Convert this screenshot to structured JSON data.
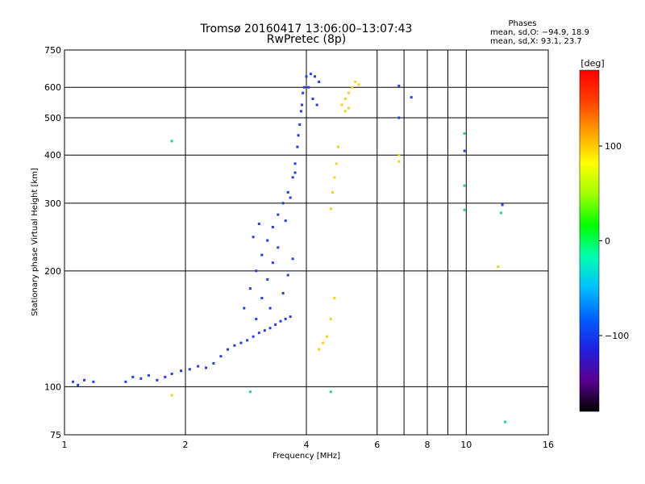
{
  "header": {
    "title_line1": "Tromsø 20160417 13:06:00–13:07:43",
    "title_line2": "RwPretec (8p)"
  },
  "stats": {
    "heading": "Phases",
    "line1": "mean, sd,O: −94.9, 18.9",
    "line2": "mean, sd,X:  93.1, 23.7"
  },
  "colorbar": {
    "unit_label": "[deg]",
    "range": [
      -180,
      180
    ],
    "tick_labels": [
      "100",
      "0",
      "−100"
    ],
    "tick_values": [
      100,
      0,
      -100
    ],
    "stops": [
      "#000000",
      "#5a0090",
      "#2020e0",
      "#0060ff",
      "#00c0ff",
      "#00ffb0",
      "#00ff00",
      "#a0ff00",
      "#ffff00",
      "#ffa000",
      "#ff4000",
      "#ff0000"
    ]
  },
  "chart_data": {
    "type": "scatter",
    "xlabel": "Frequency [MHz]",
    "ylabel": "Stationary phase Virtual Height [km]",
    "x_scale": "log",
    "y_scale": "log",
    "xlim": [
      1,
      16
    ],
    "ylim": [
      75,
      750
    ],
    "grid": true,
    "x_ticks": [
      {
        "value": 1,
        "label": "1",
        "grid": false
      },
      {
        "value": 2,
        "label": "2",
        "grid": true
      },
      {
        "value": 4,
        "label": "4",
        "grid": true
      },
      {
        "value": 6,
        "label": "6",
        "grid": true
      },
      {
        "value": 8,
        "label": "8",
        "grid": true
      },
      {
        "value": 10,
        "label": "10",
        "grid": true
      },
      {
        "value": 16,
        "label": "16",
        "grid": false
      }
    ],
    "x_minor_grid": [
      7,
      9
    ],
    "y_ticks": [
      {
        "value": 75,
        "label": "75"
      },
      {
        "value": 100,
        "label": "100"
      },
      {
        "value": 200,
        "label": "200"
      },
      {
        "value": 300,
        "label": "300"
      },
      {
        "value": 400,
        "label": "400"
      },
      {
        "value": 500,
        "label": "500"
      },
      {
        "value": 600,
        "label": "600"
      },
      {
        "value": 750,
        "label": "750"
      }
    ],
    "series": [
      {
        "mode": "O",
        "color": "#2a3ce0",
        "points": [
          [
            1.05,
            103
          ],
          [
            1.08,
            101
          ],
          [
            1.12,
            104
          ],
          [
            1.18,
            103
          ],
          [
            1.42,
            103
          ],
          [
            1.48,
            106
          ],
          [
            1.55,
            105
          ],
          [
            1.62,
            107
          ],
          [
            1.7,
            104
          ],
          [
            1.78,
            106
          ],
          [
            1.85,
            108
          ],
          [
            1.95,
            110
          ],
          [
            2.05,
            111
          ],
          [
            2.15,
            113
          ],
          [
            2.25,
            112
          ],
          [
            2.35,
            115
          ],
          [
            2.45,
            120
          ],
          [
            2.55,
            125
          ],
          [
            2.65,
            128
          ],
          [
            2.75,
            130
          ],
          [
            2.85,
            132
          ],
          [
            2.95,
            135
          ],
          [
            3.05,
            138
          ],
          [
            3.15,
            140
          ],
          [
            3.25,
            142
          ],
          [
            3.35,
            145
          ],
          [
            3.45,
            148
          ],
          [
            3.55,
            150
          ],
          [
            3.65,
            152
          ],
          [
            2.8,
            160
          ],
          [
            2.9,
            180
          ],
          [
            3.0,
            200
          ],
          [
            3.1,
            220
          ],
          [
            3.2,
            240
          ],
          [
            3.3,
            260
          ],
          [
            3.4,
            280
          ],
          [
            3.5,
            300
          ],
          [
            3.6,
            320
          ],
          [
            3.7,
            350
          ],
          [
            3.75,
            380
          ],
          [
            3.8,
            420
          ],
          [
            3.85,
            480
          ],
          [
            3.9,
            540
          ],
          [
            3.95,
            600
          ],
          [
            4.0,
            640
          ],
          [
            4.1,
            650
          ],
          [
            4.2,
            640
          ],
          [
            4.3,
            620
          ],
          [
            3.1,
            170
          ],
          [
            3.2,
            190
          ],
          [
            3.3,
            210
          ],
          [
            3.4,
            230
          ],
          [
            3.55,
            270
          ],
          [
            3.65,
            310
          ],
          [
            3.75,
            360
          ],
          [
            3.82,
            450
          ],
          [
            3.88,
            520
          ],
          [
            3.92,
            580
          ],
          [
            4.05,
            600
          ],
          [
            4.15,
            560
          ],
          [
            4.25,
            540
          ],
          [
            3.0,
            150
          ],
          [
            3.25,
            160
          ],
          [
            3.5,
            175
          ],
          [
            3.6,
            195
          ],
          [
            3.7,
            215
          ],
          [
            2.95,
            245
          ],
          [
            3.05,
            265
          ],
          [
            6.8,
            605
          ],
          [
            7.3,
            565
          ],
          [
            6.8,
            500
          ],
          [
            9.9,
            410
          ],
          [
            12.3,
            297
          ]
        ]
      },
      {
        "mode": "X",
        "color": "#f0d020",
        "points": [
          [
            4.3,
            125
          ],
          [
            4.4,
            130
          ],
          [
            4.5,
            135
          ],
          [
            4.6,
            150
          ],
          [
            4.7,
            170
          ],
          [
            4.6,
            290
          ],
          [
            4.65,
            320
          ],
          [
            4.7,
            350
          ],
          [
            4.75,
            380
          ],
          [
            4.8,
            420
          ],
          [
            4.9,
            540
          ],
          [
            5.0,
            560
          ],
          [
            5.1,
            580
          ],
          [
            5.2,
            600
          ],
          [
            5.3,
            620
          ],
          [
            5.4,
            610
          ],
          [
            5.0,
            520
          ],
          [
            5.1,
            530
          ],
          [
            6.8,
            400
          ],
          [
            6.8,
            385
          ],
          [
            12.0,
            205
          ],
          [
            1.85,
            95
          ]
        ]
      },
      {
        "mode": "other",
        "color": "#20d0a0",
        "points": [
          [
            1.85,
            435
          ],
          [
            9.9,
            455
          ],
          [
            9.9,
            333
          ],
          [
            9.9,
            288
          ],
          [
            12.2,
            283
          ],
          [
            4.6,
            97
          ],
          [
            2.9,
            97
          ],
          [
            12.5,
            81
          ]
        ]
      }
    ]
  }
}
